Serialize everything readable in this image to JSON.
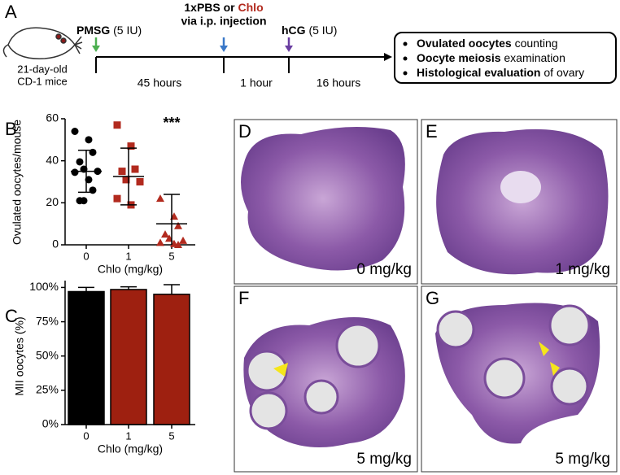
{
  "panel_letters": [
    "A",
    "B",
    "C",
    "D",
    "E",
    "F",
    "G"
  ],
  "timeline": {
    "mouse_label": [
      "21-day-old",
      "CD-1 mice"
    ],
    "pmsg": {
      "bold": "PMSG",
      "dose": "(5 IU)"
    },
    "injection": {
      "line1_bold": "1xPBS or ",
      "line1_red": "Chlo",
      "line2": "via i.p. injection"
    },
    "hcg": {
      "bold": "hCG",
      "dose": "(5 IU)"
    },
    "intervals": [
      "45 hours",
      "1 hour",
      "16 hours"
    ],
    "outcomes": [
      {
        "bold": "Ovulated oocytes",
        "rest": " counting"
      },
      {
        "bold": "Oocyte meiosis",
        "rest": " examination"
      },
      {
        "bold": "Histological evaluation",
        "rest": " of ovary"
      }
    ]
  },
  "chart_data": [
    {
      "type": "strip",
      "ylabel": "Ovulated oocytes/mouse",
      "xlabel": "Chlo (mg/kg)",
      "categories": [
        "0",
        "1",
        "5"
      ],
      "annotation": "***",
      "ylim": [
        0,
        60
      ],
      "yticks": [
        0,
        20,
        40,
        60
      ],
      "groups": [
        {
          "marker": "circle",
          "color": "#000000",
          "values": [
            54,
            50,
            44,
            39.5,
            36,
            35,
            34.5,
            31,
            26,
            21,
            21
          ],
          "mean": 35,
          "sd": 10
        },
        {
          "marker": "square",
          "color": "#b22a1e",
          "values": [
            57,
            47,
            36,
            35,
            31,
            30,
            22,
            19
          ],
          "mean": 32.5,
          "sd": 13.5
        },
        {
          "marker": "triangle",
          "color": "#b22a1e",
          "values": [
            22,
            13.5,
            9,
            5,
            3,
            2,
            1,
            0.5,
            0
          ],
          "mean": 10,
          "sd": 14
        }
      ]
    },
    {
      "type": "bar",
      "ylabel": "MII oocytes (%)",
      "xlabel": "Chlo (mg/kg)",
      "categories": [
        "0",
        "1",
        "5"
      ],
      "ylim": [
        0,
        105
      ],
      "yticks": [
        {
          "value": 0,
          "label": "0%"
        },
        {
          "value": 25,
          "label": "25%"
        },
        {
          "value": 50,
          "label": "50%"
        },
        {
          "value": 75,
          "label": "75%"
        },
        {
          "value": 100,
          "label": "100%"
        }
      ],
      "values": [
        97,
        98.5,
        95
      ],
      "errors": [
        3,
        2,
        7
      ],
      "colors": [
        "#000000",
        "#9e2010",
        "#9e2010"
      ]
    }
  ],
  "histology": [
    "0 mg/kg",
    "1 mg/kg",
    "5 mg/kg",
    "5 mg/kg"
  ]
}
